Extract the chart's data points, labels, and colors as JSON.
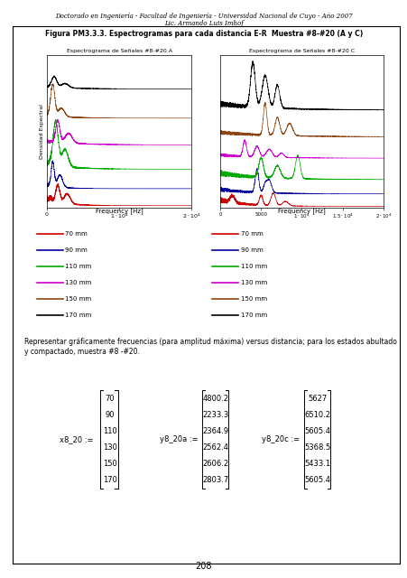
{
  "header_line1": "Doctorado en Ingeniería - Facultad de Ingeniería - Universidad Nacional de Cuyo - Año 2007",
  "header_line2": "Lic. Armando Luis Imhof",
  "figure_title": "Figura PM3.3.3. Espectrogramas para cada distancia E-R  Muestra #8-#20 (A y C)",
  "subplot_title_A": "Espectrograma de Señales #8-#20 A",
  "subplot_title_C": "Espectrograma de Señales #8-#20 C",
  "ylabel": "Densidad Espectral",
  "xlabel": "Frequency [Hz]",
  "colors": [
    "#cc0000",
    "#000099",
    "#00aa00",
    "#cc00cc",
    "#8B4513",
    "#000000"
  ],
  "legend_labels": [
    "70 mm",
    "90 mm",
    "110 mm",
    "130 mm",
    "150 mm",
    "170 mm"
  ],
  "page_number": "208",
  "description_text": "Representar gráficamente frecuencias (para amplitud máxima) versus distancia; para los estados abultado\ny compactado, muestra #8 -#20.",
  "x8_20_label": "x8_20 :=",
  "y8_20a_label": "y8_20a :=",
  "y8_20c_label": "y8_20c :=",
  "x8_20_values": [
    "70",
    "90",
    "110",
    "130",
    "150",
    "170"
  ],
  "y8_20a_values": [
    "4800.2",
    "2233.3",
    "2364.9",
    "2562.4",
    "2606.2",
    "2803.7"
  ],
  "y8_20c_values": [
    "5627",
    "6510.2",
    "5605.4",
    "5368.5",
    "5433.1",
    "5605.4"
  ]
}
